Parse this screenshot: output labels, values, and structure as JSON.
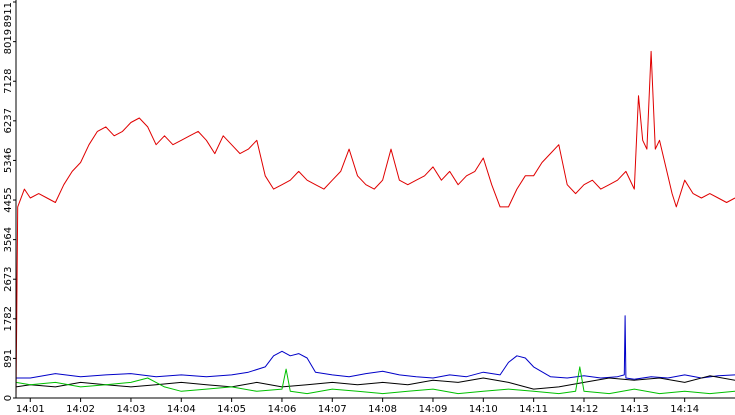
{
  "chart_data": {
    "type": "line",
    "title": "",
    "xlabel": "",
    "ylabel": "",
    "ylim": [
      0,
      8911
    ],
    "yticks": [
      0,
      891,
      1782,
      2673,
      3564,
      4455,
      5346,
      6237,
      7128,
      8019,
      8911
    ],
    "ytick_labels": [
      "0",
      "891",
      "1782",
      "2673",
      "3564",
      "4455",
      "5346",
      "6237",
      "7128",
      "8019",
      "8911"
    ],
    "xlim": [
      "14:00:43",
      "14:15:00"
    ],
    "xticks": [
      "14:01:00",
      "14:02:00",
      "14:03:00",
      "14:04:00",
      "14:05:00",
      "14:06:00",
      "14:07:00",
      "14:08:00",
      "14:09:00",
      "14:10:00",
      "14:11:00",
      "14:12:00",
      "14:13:00",
      "14:14:00"
    ],
    "xtick_labels": [
      "14:01",
      "14:02",
      "14:03",
      "14:04",
      "14:05",
      "14:06",
      "14:07",
      "14:08",
      "14:09",
      "14:10",
      "14:11",
      "14:12",
      "14:13",
      "14:14"
    ],
    "grid": false,
    "legend": "none",
    "series": [
      {
        "color": "#e00000",
        "x": [
          "14:00:43",
          "14:00:45",
          "14:00:53",
          "14:01:00",
          "14:01:10",
          "14:01:20",
          "14:01:30",
          "14:01:40",
          "14:01:50",
          "14:02:00",
          "14:02:10",
          "14:02:20",
          "14:02:30",
          "14:02:40",
          "14:02:50",
          "14:03:00",
          "14:03:10",
          "14:03:20",
          "14:03:30",
          "14:03:40",
          "14:03:50",
          "14:04:00",
          "14:04:10",
          "14:04:20",
          "14:04:30",
          "14:04:40",
          "14:04:50",
          "14:05:00",
          "14:05:10",
          "14:05:20",
          "14:05:30",
          "14:05:40",
          "14:05:50",
          "14:06:00",
          "14:06:10",
          "14:06:20",
          "14:06:30",
          "14:06:40",
          "14:06:50",
          "14:07:00",
          "14:07:10",
          "14:07:20",
          "14:07:30",
          "14:07:40",
          "14:07:50",
          "14:08:00",
          "14:08:10",
          "14:08:20",
          "14:08:30",
          "14:08:40",
          "14:08:50",
          "14:09:00",
          "14:09:10",
          "14:09:20",
          "14:09:30",
          "14:09:40",
          "14:09:50",
          "14:10:00",
          "14:10:10",
          "14:10:20",
          "14:10:30",
          "14:10:40",
          "14:10:50",
          "14:11:00",
          "14:11:10",
          "14:11:20",
          "14:11:30",
          "14:11:40",
          "14:11:50",
          "14:12:00",
          "14:12:10",
          "14:12:20",
          "14:12:30",
          "14:12:40",
          "14:12:50",
          "14:13:00",
          "14:13:05",
          "14:13:10",
          "14:13:15",
          "14:13:20",
          "14:13:25",
          "14:13:30",
          "14:13:35",
          "14:13:40",
          "14:13:45",
          "14:13:50",
          "14:14:00",
          "14:14:10",
          "14:14:20",
          "14:14:30",
          "14:14:40",
          "14:14:50",
          "14:15:00"
        ],
        "values": [
          0,
          4300,
          4700,
          4500,
          4600,
          4500,
          4400,
          4800,
          5100,
          5300,
          5700,
          6000,
          6100,
          5900,
          6000,
          6200,
          6300,
          6100,
          5700,
          5900,
          5700,
          5800,
          5900,
          6000,
          5800,
          5500,
          5900,
          5700,
          5500,
          5600,
          5800,
          5000,
          4700,
          4800,
          4900,
          5100,
          4900,
          4800,
          4700,
          4900,
          5100,
          5600,
          5000,
          4800,
          4700,
          4900,
          5600,
          4900,
          4800,
          4900,
          5000,
          5200,
          4900,
          5100,
          4800,
          5000,
          5100,
          5400,
          4800,
          4300,
          4300,
          4700,
          5000,
          5000,
          5300,
          5500,
          5700,
          4800,
          4600,
          4800,
          4900,
          4700,
          4800,
          4900,
          5100,
          4700,
          6800,
          5800,
          5600,
          7800,
          5600,
          5800,
          5400,
          5000,
          4600,
          4300,
          4900,
          4600,
          4500,
          4600,
          4500,
          4400,
          4500
        ]
      },
      {
        "color": "#0000c8",
        "x": [
          "14:00:43",
          "14:01:00",
          "14:01:30",
          "14:02:00",
          "14:02:30",
          "14:03:00",
          "14:03:30",
          "14:04:00",
          "14:04:30",
          "14:05:00",
          "14:05:20",
          "14:05:40",
          "14:05:50",
          "14:06:00",
          "14:06:10",
          "14:06:20",
          "14:06:30",
          "14:06:40",
          "14:07:00",
          "14:07:20",
          "14:07:40",
          "14:08:00",
          "14:08:20",
          "14:08:40",
          "14:09:00",
          "14:09:20",
          "14:09:40",
          "14:10:00",
          "14:10:20",
          "14:10:30",
          "14:10:40",
          "14:10:50",
          "14:11:00",
          "14:11:20",
          "14:11:40",
          "14:12:00",
          "14:12:20",
          "14:12:40",
          "14:12:48",
          "14:12:49",
          "14:12:50",
          "14:13:00",
          "14:13:20",
          "14:13:40",
          "14:14:00",
          "14:14:20",
          "14:14:40",
          "14:15:00"
        ],
        "values": [
          450,
          450,
          550,
          480,
          520,
          550,
          480,
          520,
          480,
          520,
          580,
          700,
          950,
          1050,
          950,
          1000,
          900,
          580,
          520,
          480,
          550,
          600,
          520,
          480,
          450,
          520,
          480,
          580,
          520,
          800,
          950,
          900,
          700,
          480,
          450,
          500,
          450,
          480,
          520,
          1850,
          450,
          420,
          480,
          450,
          520,
          450,
          500,
          520
        ]
      },
      {
        "color": "#000000",
        "x": [
          "14:00:43",
          "14:01:00",
          "14:01:30",
          "14:02:00",
          "14:02:30",
          "14:03:00",
          "14:03:30",
          "14:04:00",
          "14:04:30",
          "14:05:00",
          "14:05:30",
          "14:06:00",
          "14:06:30",
          "14:07:00",
          "14:07:30",
          "14:08:00",
          "14:08:30",
          "14:09:00",
          "14:09:30",
          "14:10:00",
          "14:10:30",
          "14:11:00",
          "14:11:30",
          "14:12:00",
          "14:12:30",
          "14:13:00",
          "14:13:30",
          "14:14:00",
          "14:14:30",
          "14:15:00"
        ],
        "values": [
          250,
          300,
          250,
          350,
          300,
          250,
          300,
          350,
          300,
          250,
          350,
          250,
          300,
          350,
          300,
          350,
          300,
          400,
          350,
          450,
          350,
          200,
          250,
          350,
          450,
          400,
          450,
          350,
          500,
          400
        ]
      },
      {
        "color": "#00c000",
        "x": [
          "14:00:43",
          "14:01:00",
          "14:01:30",
          "14:02:00",
          "14:02:30",
          "14:03:00",
          "14:03:20",
          "14:03:40",
          "14:04:00",
          "14:04:30",
          "14:05:00",
          "14:05:30",
          "14:06:00",
          "14:06:05",
          "14:06:10",
          "14:06:30",
          "14:07:00",
          "14:07:30",
          "14:08:00",
          "14:08:30",
          "14:09:00",
          "14:09:30",
          "14:10:00",
          "14:10:30",
          "14:11:00",
          "14:11:30",
          "14:11:50",
          "14:11:55",
          "14:12:00",
          "14:12:30",
          "14:13:00",
          "14:13:30",
          "14:14:00",
          "14:14:30",
          "14:15:00"
        ],
        "values": [
          350,
          300,
          350,
          250,
          300,
          350,
          450,
          250,
          150,
          200,
          250,
          150,
          200,
          650,
          150,
          100,
          200,
          150,
          100,
          150,
          200,
          100,
          150,
          200,
          150,
          100,
          150,
          700,
          150,
          100,
          200,
          100,
          150,
          100,
          150
        ]
      }
    ]
  }
}
